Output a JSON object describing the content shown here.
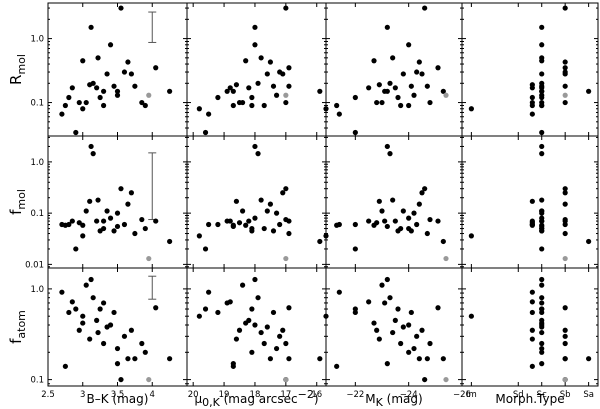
{
  "figure": {
    "row_labels": [
      {
        "main": "R",
        "sub": "mol"
      },
      {
        "main": "f",
        "sub": "mol"
      },
      {
        "main": "f",
        "sub": "atom"
      }
    ],
    "column_labels": [
      {
        "text": "B–K (mag)"
      },
      {
        "pre": "μ",
        "sub": "0,K",
        "post": " (mag arcsec",
        "sup": "−2",
        "end": ")"
      },
      {
        "pre": "M",
        "sub": "K",
        "post": " (mag)"
      },
      {
        "text": "Morph.Type"
      }
    ]
  },
  "chart_data": {
    "type": "scatter",
    "layout": "3x4 grid of scatter panels with shared row y-axes",
    "point_colors": {
      "main": "#000000",
      "highlight": "#999999"
    },
    "rows": [
      {
        "name": "Rmol",
        "log": true,
        "ylim": [
          0.03,
          3.6
        ],
        "ticks": [
          {
            "v": 1.0,
            "label": "1.0"
          },
          {
            "v": 0.1,
            "label": "0.1"
          }
        ]
      },
      {
        "name": "fmol",
        "log": true,
        "ylim": [
          0.0085,
          3.2
        ],
        "ticks": [
          {
            "v": 1.0,
            "label": "1.0"
          },
          {
            "v": 0.1,
            "label": "0.1"
          },
          {
            "v": 0.01,
            "label": "0.01"
          }
        ]
      },
      {
        "name": "fatom",
        "log": true,
        "ylim": [
          0.085,
          1.7
        ],
        "ticks": [
          {
            "v": 1.0,
            "label": "1.0"
          },
          {
            "v": 0.1,
            "label": "0.1"
          }
        ]
      }
    ],
    "columns": [
      {
        "name": "B-K",
        "reversed": false,
        "xlim": [
          2.5,
          4.5
        ],
        "ticks": [
          {
            "v": 2.5,
            "label": "2.5"
          },
          {
            "v": 3.0,
            "label": "3"
          },
          {
            "v": 3.5,
            "label": "3.5"
          },
          {
            "v": 4.0,
            "label": "4"
          },
          {
            "v": 4.5,
            "label": ""
          }
        ]
      },
      {
        "name": "mu0K",
        "reversed": true,
        "xlim": [
          20.2,
          15.7
        ],
        "ticks": [
          {
            "v": 20,
            "label": "20"
          },
          {
            "v": 19,
            "label": "19"
          },
          {
            "v": 18,
            "label": "18"
          },
          {
            "v": 17,
            "label": "17"
          },
          {
            "v": 16,
            "label": "16"
          }
        ]
      },
      {
        "name": "MK",
        "reversed": true,
        "xlim": [
          -20.9,
          -26
        ],
        "ticks": [
          {
            "v": -22,
            "label": "−22"
          },
          {
            "v": -24,
            "label": "−24"
          },
          {
            "v": -26,
            "label": "−26"
          }
        ]
      },
      {
        "name": "Morph",
        "categorical": true,
        "xlim": [
          0.6,
          6.4
        ],
        "categories": [
          "Im",
          "Sd",
          "Sc",
          "Sb",
          "Sa"
        ],
        "ticks": [
          {
            "v": 1,
            "label": "Im"
          },
          {
            "v": 3,
            "label": "Sd"
          },
          {
            "v": 4,
            "label": "Sc"
          },
          {
            "v": 5,
            "label": "Sb"
          },
          {
            "v": 6,
            "label": "Sa"
          }
        ]
      }
    ],
    "error_bars": [
      {
        "row": 0,
        "col": 0,
        "x": 4.0,
        "ylow": 0.87,
        "yhigh": 2.6
      },
      {
        "row": 1,
        "col": 0,
        "x": 4.0,
        "ylow": 0.075,
        "yhigh": 1.5
      },
      {
        "row": 2,
        "col": 0,
        "x": 4.0,
        "ylow": 0.77,
        "yhigh": 1.38
      }
    ],
    "galaxies": [
      {
        "bk": 2.7,
        "mu": 19.5,
        "mk": -21.4,
        "morph": 3.6,
        "rmol": 0.066,
        "fmol": 0.06,
        "fatom": 0.92
      },
      {
        "bk": 2.8,
        "mu": 19.2,
        "mk": -22.0,
        "morph": 3.6,
        "rmol": 0.12,
        "fmol": 0.06,
        "fatom": 0.55
      },
      {
        "bk": 2.85,
        "mu": 18.8,
        "mk": -22.5,
        "morph": 3.6,
        "rmol": 0.17,
        "fmol": 0.07,
        "fatom": 0.72
      },
      {
        "bk": 2.9,
        "mu": 19.6,
        "mk": -22.0,
        "morph": 4.0,
        "rmol": 0.034,
        "fmol": 0.02,
        "fatom": 0.6
      },
      {
        "bk": 2.95,
        "mu": 18.5,
        "mk": -22.8,
        "morph": 3.6,
        "rmol": 0.1,
        "fmol": 0.065,
        "fatom": 0.35
      },
      {
        "bk": 3.0,
        "mu": 18.3,
        "mk": -22.7,
        "morph": 4.0,
        "rmol": 0.45,
        "fmol": 0.058,
        "fatom": 0.42
      },
      {
        "bk": 3.05,
        "mu": 18.4,
        "mk": -23.0,
        "morph": 4.0,
        "rmol": 0.1,
        "fmol": 0.11,
        "fatom": 1.1
      },
      {
        "bk": 3.1,
        "mu": 18.6,
        "mk": -22.9,
        "morph": 3.6,
        "rmol": 0.19,
        "fmol": 0.17,
        "fatom": 0.28
      },
      {
        "bk": 3.12,
        "mu": 18.0,
        "mk": -23.2,
        "morph": 4.0,
        "rmol": 1.5,
        "fmol": 2.0,
        "fatom": 1.27
      },
      {
        "bk": 3.15,
        "mu": 17.9,
        "mk": -23.3,
        "morph": 4.0,
        "rmol": 0.2,
        "fmol": 1.45,
        "fatom": 0.8
      },
      {
        "bk": 3.2,
        "mu": 18.2,
        "mk": -23.5,
        "morph": 4.0,
        "rmol": 0.17,
        "fmol": 0.07,
        "fatom": 0.45
      },
      {
        "bk": 3.22,
        "mu": 17.8,
        "mk": -23.4,
        "morph": 4.0,
        "rmol": 0.5,
        "fmol": 0.18,
        "fatom": 0.33
      },
      {
        "bk": 3.25,
        "mu": 18.1,
        "mk": -23.6,
        "morph": 4.0,
        "rmol": 0.12,
        "fmol": 0.045,
        "fatom": 0.6
      },
      {
        "bk": 3.3,
        "mu": 17.7,
        "mk": -23.7,
        "morph": 4.0,
        "rmol": 0.09,
        "fmol": 0.05,
        "fatom": 0.25
      },
      {
        "bk": 3.35,
        "mu": 17.6,
        "mk": -23.8,
        "morph": 4.0,
        "rmol": 0.28,
        "fmol": 0.11,
        "fatom": 0.38
      },
      {
        "bk": 3.4,
        "mu": 18.0,
        "mk": -24.0,
        "morph": 4.0,
        "rmol": 0.8,
        "fmol": 0.08,
        "fatom": 0.4
      },
      {
        "bk": 3.45,
        "mu": 17.4,
        "mk": -24.1,
        "morph": 4.0,
        "rmol": 0.18,
        "fmol": 0.045,
        "fatom": 0.55
      },
      {
        "bk": 3.5,
        "mu": 17.3,
        "mk": -24.2,
        "morph": 4.0,
        "rmol": 0.13,
        "fmol": 0.1,
        "fatom": 0.22
      },
      {
        "bk": 3.55,
        "mu": 17.0,
        "mk": -24.6,
        "morph": 5.0,
        "rmol": 3.0,
        "fmol": 0.3,
        "fatom": 0.1
      },
      {
        "bk": 3.6,
        "mu": 17.2,
        "mk": -24.3,
        "morph": 5.0,
        "rmol": 0.3,
        "fmol": 0.06,
        "fatom": 0.3
      },
      {
        "bk": 3.65,
        "mu": 17.5,
        "mk": -24.4,
        "morph": 5.0,
        "rmol": 0.43,
        "fmol": 0.15,
        "fatom": 0.17
      },
      {
        "bk": 3.7,
        "mu": 17.1,
        "mk": -24.5,
        "morph": 5.0,
        "rmol": 0.28,
        "fmol": 0.25,
        "fatom": 0.35
      },
      {
        "bk": 3.75,
        "mu": 16.9,
        "mk": -24.7,
        "morph": 5.0,
        "rmol": 0.18,
        "fmol": 0.04,
        "fatom": 0.17
      },
      {
        "bk": 3.85,
        "mu": 17.0,
        "mk": -24.8,
        "morph": 5.0,
        "rmol": 0.1,
        "fmol": 0.075,
        "fatom": 0.25
      },
      {
        "bk": 3.9,
        "mu": 18.1,
        "mk": -24.0,
        "morph": 4.0,
        "rmol": 0.09,
        "fmol": 0.05,
        "fatom": 0.2
      },
      {
        "bk": 4.05,
        "mu": 16.9,
        "mk": -25.1,
        "morph": 5.0,
        "rmol": 0.35,
        "fmol": 0.07,
        "fatom": 0.62
      },
      {
        "bk": 4.25,
        "mu": 15.9,
        "mk": -25.3,
        "morph": 6.0,
        "rmol": 0.15,
        "fmol": 0.028,
        "fatom": 0.17
      },
      {
        "bk": 3.5,
        "mu": 18.7,
        "mk": -23.2,
        "morph": 4.0,
        "rmol": 0.15,
        "fmol": 0.055,
        "fatom": 0.15
      },
      {
        "bk": 3.0,
        "mu": 19.8,
        "mk": -20.9,
        "morph": 1.0,
        "rmol": 0.08,
        "fmol": 0.036,
        "fatom": 0.5
      },
      {
        "bk": 3.3,
        "mu": 18.9,
        "mk": -23.1,
        "morph": 4.0,
        "rmol": 0.15,
        "fmol": 0.07,
        "fatom": 0.7
      },
      {
        "bk": 2.75,
        "mu": 18.7,
        "mk": -21.3,
        "morph": 3.6,
        "rmol": 0.09,
        "fmol": 0.058,
        "fatom": 0.14
      },
      {
        "bk": 3.95,
        "mu": 17.0,
        "mk": -25.4,
        "morph": 5.0,
        "rmol": 0.13,
        "fmol": 0.013,
        "fatom": 0.1,
        "highlight": true
      }
    ]
  }
}
